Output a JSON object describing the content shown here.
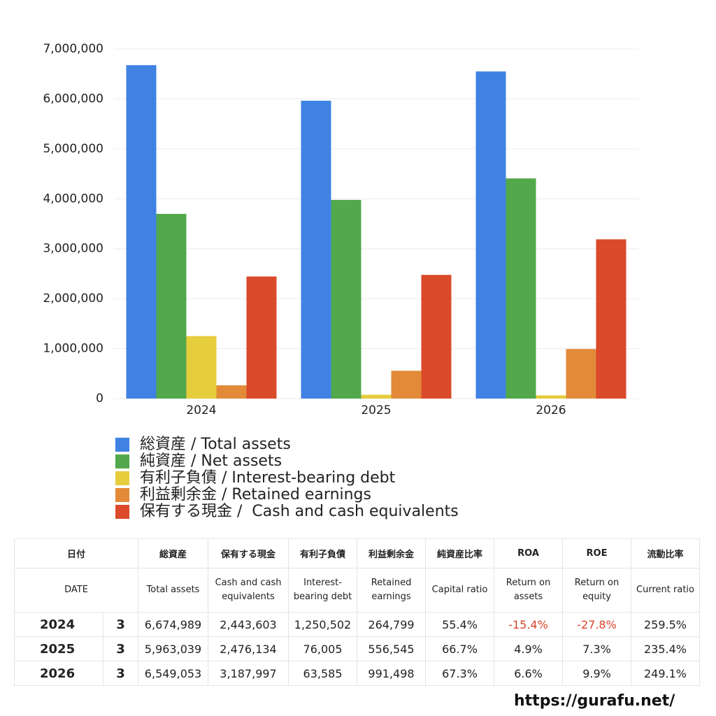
{
  "chart_data": {
    "type": "bar",
    "categories": [
      "2024",
      "2025",
      "2026"
    ],
    "series": [
      {
        "name": "総資産 / Total assets",
        "color": "#3f82e3",
        "values": [
          6674989,
          5963039,
          6549053
        ]
      },
      {
        "name": "純資産 / Net assets",
        "color": "#52a84b",
        "values": [
          3697944,
          3977347,
          4407513
        ]
      },
      {
        "name": "有利子負債 / Interest-bearing debt",
        "color": "#e6cd3c",
        "values": [
          1250502,
          76005,
          63585
        ]
      },
      {
        "name": "利益剰余金 / Retained earnings",
        "color": "#e28a38",
        "values": [
          264799,
          556545,
          991498
        ]
      },
      {
        "name": "保有する現金 /  Cash and cash equivalents",
        "color": "#da4a2b",
        "values": [
          2443603,
          2476134,
          3187997
        ]
      }
    ],
    "ylim": [
      0,
      7000000
    ],
    "yticks": [
      0,
      {
        "value": 1000000,
        "label": "1,000,000"
      },
      {
        "value": 2000000,
        "label": "2,000,000"
      },
      {
        "value": 3000000,
        "label": "3,000,000"
      },
      {
        "value": 4000000,
        "label": "4,000,000"
      },
      {
        "value": 5000000,
        "label": "5,000,000"
      },
      {
        "value": 6000000,
        "label": "6,000,000"
      },
      {
        "value": 7000000,
        "label": "7,000,000"
      }
    ],
    "grid": true
  },
  "table": {
    "header": [
      [
        "日付",
        "総資産",
        "保有する現金",
        "有利子負債",
        "利益剰余金",
        "純資産比率",
        "ROA",
        "ROE",
        "流動比率"
      ],
      [
        "DATE",
        "Total assets",
        "Cash and cash equivalents",
        "Interest-bearing debt",
        "Retained earnings",
        "Capital ratio",
        "Return on assets",
        "Return on equity",
        "Current ratio"
      ]
    ],
    "rows": [
      [
        "2024",
        "3",
        "6,674,989",
        "2,443,603",
        "1,250,502",
        "264,799",
        "55.4%",
        "-15.4%",
        "-27.8%",
        "259.5%"
      ],
      [
        "2025",
        "3",
        "5,963,039",
        "2,476,134",
        "76,005",
        "556,545",
        "66.7%",
        "4.9%",
        "7.3%",
        "235.4%"
      ],
      [
        "2026",
        "3",
        "6,549,053",
        "3,187,997",
        "63,585",
        "991,498",
        "67.3%",
        "6.6%",
        "9.9%",
        "249.1%"
      ]
    ]
  },
  "footer": {
    "url": "https://gurafu.net/"
  }
}
